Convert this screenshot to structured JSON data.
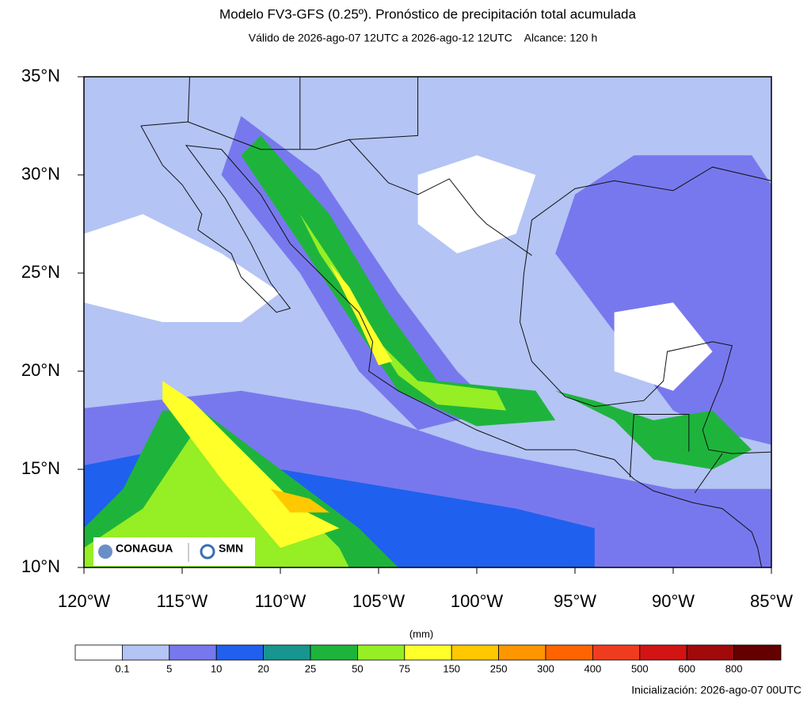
{
  "chart_data": {
    "type": "map",
    "title": "Modelo FV3-GFS (0.25º). Pronóstico de precipitación total acumulada",
    "subtitle": "Válido de 2026-ago-07 12UTC a 2026-ago-12 12UTC    Alcance: 120 h",
    "xlim": [
      -120,
      -85
    ],
    "ylim": [
      10,
      35
    ],
    "xticks": [
      {
        "value": -120,
        "label": "120°W"
      },
      {
        "value": -115,
        "label": "115°W"
      },
      {
        "value": -110,
        "label": "110°W"
      },
      {
        "value": -105,
        "label": "105°W"
      },
      {
        "value": -100,
        "label": "100°W"
      },
      {
        "value": -95,
        "label": "95°W"
      },
      {
        "value": -90,
        "label": "90°W"
      },
      {
        "value": -85,
        "label": "85°W"
      }
    ],
    "yticks": [
      {
        "value": 10,
        "label": "10°N"
      },
      {
        "value": 15,
        "label": "15°N"
      },
      {
        "value": 20,
        "label": "20°N"
      },
      {
        "value": 25,
        "label": "25°N"
      },
      {
        "value": 30,
        "label": "30°N"
      },
      {
        "value": 35,
        "label": "35°N"
      }
    ],
    "colorbar": {
      "unit": "(mm)",
      "levels": [
        0.1,
        5,
        10,
        20,
        25,
        50,
        75,
        150,
        250,
        300,
        400,
        500,
        600,
        800
      ],
      "colors": [
        "#ffffff",
        "#b4c4f4",
        "#7878ee",
        "#2060ee",
        "#16968e",
        "#1eb43c",
        "#96ee24",
        "#ffff2a",
        "#ffc800",
        "#ff9600",
        "#ff6400",
        "#f03c1e",
        "#d21414",
        "#a00a0a",
        "#640000"
      ]
    },
    "footer": "Inicialización: 2026-ago-07 00UTC",
    "logos": [
      "CONAGUA",
      "SMN"
    ]
  }
}
